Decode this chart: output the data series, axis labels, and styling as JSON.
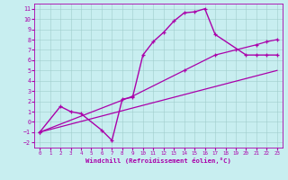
{
  "xlabel": "Windchill (Refroidissement éolien,°C)",
  "bg_color": "#c8eef0",
  "line_color": "#aa00aa",
  "xlim": [
    -0.5,
    23.5
  ],
  "ylim": [
    -2.5,
    11.5
  ],
  "xticks": [
    0,
    1,
    2,
    3,
    4,
    5,
    6,
    7,
    8,
    9,
    10,
    11,
    12,
    13,
    14,
    15,
    16,
    17,
    18,
    19,
    20,
    21,
    22,
    23
  ],
  "yticks": [
    -2,
    -1,
    0,
    1,
    2,
    3,
    4,
    5,
    6,
    7,
    8,
    9,
    10,
    11
  ],
  "series": [
    {
      "x": [
        0,
        2,
        3,
        4,
        6,
        7,
        8,
        9,
        10,
        11,
        12,
        13,
        14,
        15,
        16,
        17,
        20,
        21,
        22,
        23
      ],
      "y": [
        -1.0,
        1.5,
        1.0,
        0.8,
        -0.8,
        -1.8,
        2.2,
        2.4,
        6.5,
        7.8,
        8.7,
        9.8,
        10.6,
        10.7,
        11.0,
        8.5,
        6.5,
        6.5,
        6.5,
        6.5
      ],
      "marker": true,
      "lw": 1.0
    },
    {
      "x": [
        0,
        9,
        14,
        17,
        19,
        21,
        22,
        23
      ],
      "y": [
        -1.0,
        2.5,
        5.0,
        6.5,
        7.0,
        7.5,
        7.8,
        8.0
      ],
      "marker": true,
      "lw": 0.9
    },
    {
      "x": [
        0,
        23
      ],
      "y": [
        -1.0,
        5.0
      ],
      "marker": false,
      "lw": 0.9
    }
  ]
}
